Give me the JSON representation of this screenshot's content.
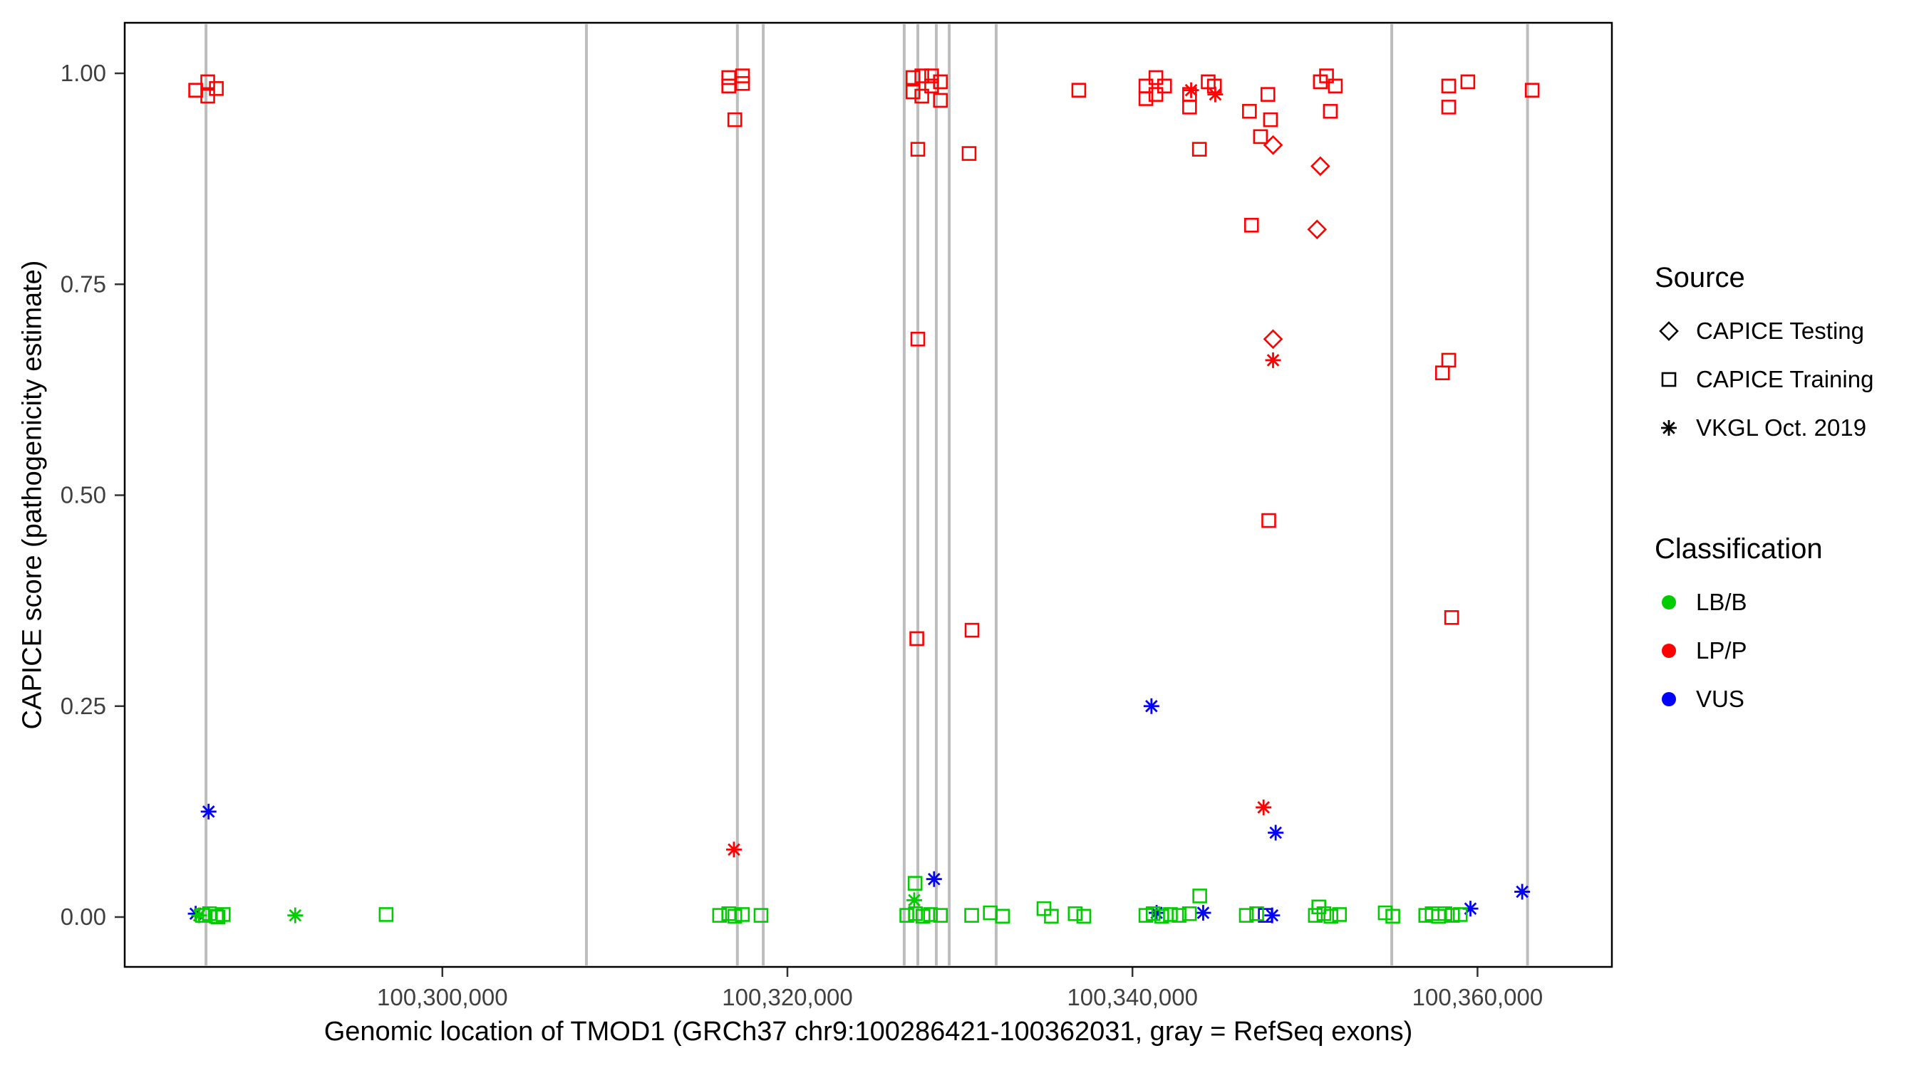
{
  "chart_data": {
    "type": "scatter",
    "title": "",
    "xlabel": "Genomic location of TMOD1 (GRCh37 chr9:100286421-100362031, gray = RefSeq exons)",
    "ylabel": "CAPICE score (pathogenicity estimate)",
    "x_domain": [
      100282000,
      100367500
    ],
    "y_domain": [
      0,
      1
    ],
    "grid": false,
    "legend_position": "right",
    "x_ticks": [
      {
        "value": 100300000,
        "label": "100,300,000"
      },
      {
        "value": 100320000,
        "label": "100,320,000"
      },
      {
        "value": 100340000,
        "label": "100,340,000"
      },
      {
        "value": 100360000,
        "label": "100,360,000"
      }
    ],
    "y_ticks": [
      {
        "value": 0.0,
        "label": "0.00"
      },
      {
        "value": 0.25,
        "label": "0.25"
      },
      {
        "value": 0.5,
        "label": "0.50"
      },
      {
        "value": 0.75,
        "label": "0.75"
      },
      {
        "value": 1.0,
        "label": "1.00"
      }
    ],
    "exon_line_color": "#BDBDBD",
    "exon_lines_x": [
      100286300,
      100308350,
      100317100,
      100318600,
      100326770,
      100327560,
      100328630,
      100329380,
      100332100,
      100355030,
      100362900
    ],
    "classification_colors": {
      "LB/B": "#00CC00",
      "LP/P": "#FF0000",
      "VUS": "#0000FF"
    },
    "source_shapes": {
      "testing": "diamond",
      "training": "square",
      "vkgl": "asterisk"
    },
    "source_labels": {
      "testing": "CAPICE Testing",
      "training": "CAPICE Training",
      "vkgl": "VKGL Oct. 2019"
    },
    "points_columns": [
      "genomic_x",
      "capice_score",
      "source",
      "classification"
    ],
    "points": [
      [
        100285700,
        0.98,
        "training",
        "LP/P"
      ],
      [
        100286400,
        0.99,
        "training",
        "LP/P"
      ],
      [
        100286400,
        0.973,
        "training",
        "LP/P"
      ],
      [
        100286900,
        0.982,
        "training",
        "LP/P"
      ],
      [
        100316600,
        0.995,
        "training",
        "LP/P"
      ],
      [
        100317400,
        0.997,
        "training",
        "LP/P"
      ],
      [
        100316600,
        0.985,
        "training",
        "LP/P"
      ],
      [
        100317400,
        0.988,
        "training",
        "LP/P"
      ],
      [
        100316950,
        0.945,
        "training",
        "LP/P"
      ],
      [
        100327280,
        0.995,
        "training",
        "LP/P"
      ],
      [
        100327790,
        0.997,
        "training",
        "LP/P"
      ],
      [
        100328360,
        0.997,
        "training",
        "LP/P"
      ],
      [
        100328870,
        0.99,
        "training",
        "LP/P"
      ],
      [
        100327280,
        0.978,
        "training",
        "LP/P"
      ],
      [
        100327790,
        0.973,
        "training",
        "LP/P"
      ],
      [
        100328360,
        0.985,
        "training",
        "LP/P"
      ],
      [
        100328870,
        0.968,
        "training",
        "LP/P"
      ],
      [
        100327560,
        0.91,
        "training",
        "LP/P"
      ],
      [
        100330530,
        0.905,
        "training",
        "LP/P"
      ],
      [
        100327560,
        0.685,
        "training",
        "LP/P"
      ],
      [
        100327500,
        0.33,
        "training",
        "LP/P"
      ],
      [
        100330700,
        0.34,
        "training",
        "LP/P"
      ],
      [
        100336890,
        0.98,
        "training",
        "LP/P"
      ],
      [
        100340780,
        0.985,
        "training",
        "LP/P"
      ],
      [
        100340780,
        0.97,
        "training",
        "LP/P"
      ],
      [
        100341360,
        0.995,
        "training",
        "LP/P"
      ],
      [
        100341360,
        0.975,
        "training",
        "LP/P"
      ],
      [
        100341860,
        0.985,
        "training",
        "LP/P"
      ],
      [
        100343310,
        0.96,
        "training",
        "LP/P"
      ],
      [
        100343310,
        0.975,
        "training",
        "LP/P"
      ],
      [
        100344390,
        0.99,
        "training",
        "LP/P"
      ],
      [
        100344750,
        0.985,
        "training",
        "LP/P"
      ],
      [
        100343880,
        0.91,
        "training",
        "LP/P"
      ],
      [
        100346780,
        0.955,
        "training",
        "LP/P"
      ],
      [
        100347420,
        0.925,
        "training",
        "LP/P"
      ],
      [
        100348000,
        0.945,
        "training",
        "LP/P"
      ],
      [
        100347850,
        0.975,
        "training",
        "LP/P"
      ],
      [
        100346900,
        0.82,
        "training",
        "LP/P"
      ],
      [
        100351250,
        0.997,
        "training",
        "LP/P"
      ],
      [
        100350890,
        0.99,
        "training",
        "LP/P"
      ],
      [
        100351760,
        0.985,
        "training",
        "LP/P"
      ],
      [
        100351470,
        0.955,
        "training",
        "LP/P"
      ],
      [
        100347900,
        0.47,
        "training",
        "LP/P"
      ],
      [
        100358330,
        0.985,
        "training",
        "LP/P"
      ],
      [
        100359440,
        0.99,
        "training",
        "LP/P"
      ],
      [
        100358330,
        0.96,
        "training",
        "LP/P"
      ],
      [
        100358330,
        0.66,
        "training",
        "LP/P"
      ],
      [
        100357970,
        0.645,
        "training",
        "LP/P"
      ],
      [
        100358500,
        0.355,
        "training",
        "LP/P"
      ],
      [
        100363170,
        0.98,
        "training",
        "LP/P"
      ],
      [
        100348150,
        0.915,
        "testing",
        "LP/P"
      ],
      [
        100350890,
        0.89,
        "testing",
        "LP/P"
      ],
      [
        100350700,
        0.815,
        "testing",
        "LP/P"
      ],
      [
        100348150,
        0.685,
        "testing",
        "LP/P"
      ],
      [
        100316900,
        0.08,
        "vkgl",
        "LP/P"
      ],
      [
        100343400,
        0.98,
        "vkgl",
        "LP/P"
      ],
      [
        100344800,
        0.975,
        "vkgl",
        "LP/P"
      ],
      [
        100348150,
        0.66,
        "vkgl",
        "LP/P"
      ],
      [
        100347600,
        0.13,
        "vkgl",
        "LP/P"
      ],
      [
        100286450,
        0.125,
        "vkgl",
        "VUS"
      ],
      [
        100285700,
        0.004,
        "vkgl",
        "VUS"
      ],
      [
        100328500,
        0.045,
        "vkgl",
        "VUS"
      ],
      [
        100341100,
        0.25,
        "vkgl",
        "VUS"
      ],
      [
        100348300,
        0.1,
        "vkgl",
        "VUS"
      ],
      [
        100341400,
        0.005,
        "vkgl",
        "VUS"
      ],
      [
        100344100,
        0.005,
        "vkgl",
        "VUS"
      ],
      [
        100348100,
        0.002,
        "vkgl",
        "VUS"
      ],
      [
        100359590,
        0.01,
        "vkgl",
        "VUS"
      ],
      [
        100362590,
        0.03,
        "vkgl",
        "VUS"
      ],
      [
        100347700,
        0.002,
        "training",
        "VUS"
      ],
      [
        100285900,
        0.002,
        "vkgl",
        "LB/B"
      ],
      [
        100291470,
        0.002,
        "vkgl",
        "LB/B"
      ],
      [
        100327350,
        0.02,
        "vkgl",
        "LB/B"
      ],
      [
        100286100,
        0.002,
        "training",
        "LB/B"
      ],
      [
        100286500,
        0.004,
        "training",
        "LB/B"
      ],
      [
        100286900,
        0.001,
        "training",
        "LB/B"
      ],
      [
        100287300,
        0.003,
        "training",
        "LB/B"
      ],
      [
        100287000,
        0.0,
        "training",
        "LB/B"
      ],
      [
        100296740,
        0.003,
        "training",
        "LB/B"
      ],
      [
        100316070,
        0.002,
        "training",
        "LB/B"
      ],
      [
        100316600,
        0.004,
        "training",
        "LB/B"
      ],
      [
        100316950,
        0.001,
        "training",
        "LB/B"
      ],
      [
        100317390,
        0.003,
        "training",
        "LB/B"
      ],
      [
        100318470,
        0.002,
        "training",
        "LB/B"
      ],
      [
        100327400,
        0.04,
        "training",
        "LB/B"
      ],
      [
        100326920,
        0.002,
        "training",
        "LB/B"
      ],
      [
        100327420,
        0.004,
        "training",
        "LB/B"
      ],
      [
        100327860,
        0.001,
        "training",
        "LB/B"
      ],
      [
        100328290,
        0.003,
        "training",
        "LB/B"
      ],
      [
        100328870,
        0.002,
        "training",
        "LB/B"
      ],
      [
        100330680,
        0.002,
        "training",
        "LB/B"
      ],
      [
        100331760,
        0.005,
        "training",
        "LB/B"
      ],
      [
        100332470,
        0.001,
        "training",
        "LB/B"
      ],
      [
        100334870,
        0.01,
        "training",
        "LB/B"
      ],
      [
        100335300,
        0.001,
        "training",
        "LB/B"
      ],
      [
        100336680,
        0.004,
        "training",
        "LB/B"
      ],
      [
        100337180,
        0.001,
        "training",
        "LB/B"
      ],
      [
        100340780,
        0.002,
        "training",
        "LB/B"
      ],
      [
        100341200,
        0.004,
        "training",
        "LB/B"
      ],
      [
        100341700,
        0.001,
        "training",
        "LB/B"
      ],
      [
        100342200,
        0.003,
        "training",
        "LB/B"
      ],
      [
        100342700,
        0.002,
        "training",
        "LB/B"
      ],
      [
        100343300,
        0.004,
        "training",
        "LB/B"
      ],
      [
        100343900,
        0.025,
        "training",
        "LB/B"
      ],
      [
        100346600,
        0.002,
        "training",
        "LB/B"
      ],
      [
        100347200,
        0.004,
        "training",
        "LB/B"
      ],
      [
        100350600,
        0.002,
        "training",
        "LB/B"
      ],
      [
        100351100,
        0.004,
        "training",
        "LB/B"
      ],
      [
        100351500,
        0.001,
        "training",
        "LB/B"
      ],
      [
        100352000,
        0.003,
        "training",
        "LB/B"
      ],
      [
        100350800,
        0.012,
        "training",
        "LB/B"
      ],
      [
        100354650,
        0.005,
        "training",
        "LB/B"
      ],
      [
        100355090,
        0.001,
        "training",
        "LB/B"
      ],
      [
        100357000,
        0.002,
        "training",
        "LB/B"
      ],
      [
        100357370,
        0.004,
        "training",
        "LB/B"
      ],
      [
        100357740,
        0.001,
        "training",
        "LB/B"
      ],
      [
        100358110,
        0.004,
        "training",
        "LB/B"
      ],
      [
        100358550,
        0.002,
        "training",
        "LB/B"
      ],
      [
        100359000,
        0.003,
        "training",
        "LB/B"
      ]
    ]
  },
  "legend": {
    "source": {
      "title": "Source",
      "items": [
        {
          "label": "CAPICE Testing",
          "shape": "diamond"
        },
        {
          "label": "CAPICE Training",
          "shape": "square"
        },
        {
          "label": "VKGL Oct. 2019",
          "shape": "asterisk"
        }
      ]
    },
    "classification": {
      "title": "Classification",
      "items": [
        {
          "label": "LB/B",
          "color": "#00CC00"
        },
        {
          "label": "LP/P",
          "color": "#FF0000"
        },
        {
          "label": "VUS",
          "color": "#0000FF"
        }
      ]
    }
  }
}
